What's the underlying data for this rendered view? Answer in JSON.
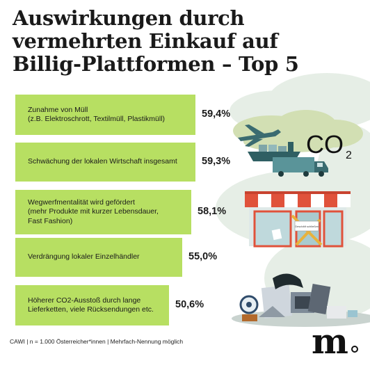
{
  "title_lines": [
    "Auswirkungen durch",
    "vermehrten Einkauf auf",
    "Billig-Plattformen – Top 5"
  ],
  "footnote": "CAWI | n = 1.000 Österreicher*innen | Mehrfach-Nennung möglich",
  "logo_text": "m",
  "co2_label": "CO",
  "co2_subscript": "2",
  "shop_sign": "Geschäft schließen",
  "colors": {
    "bar": "#b7df62",
    "cloud": "#e6eee6",
    "text": "#1a1a1a",
    "awning_red": "#e0523b"
  },
  "icons": [
    "airplane-icon",
    "ship-icon",
    "truck-icon",
    "shop-icon",
    "trash-pile-icon"
  ],
  "chart_data": {
    "type": "bar",
    "orientation": "horizontal",
    "categories": [
      "Zunahme von Müll\n(z.B. Elektroschrott, Textilmüll, Plastikmüll)",
      "Schwächung der lokalen Wirtschaft insgesamt",
      "Wegwerfmentalität wird gefördert\n(mehr Produkte mit kurzer Lebensdauer,\nFast Fashion)",
      "Verdrängung lokaler Einzelhändler",
      "Höherer CO2-Ausstoß durch lange\nLieferketten, viele Rücksendungen etc."
    ],
    "values": [
      59.4,
      59.3,
      58.1,
      55.0,
      50.6
    ],
    "value_labels": [
      "59,4%",
      "59,3%",
      "58,1%",
      "55,0%",
      "50,6%"
    ],
    "unit": "%",
    "grid": false,
    "legend": "none"
  }
}
